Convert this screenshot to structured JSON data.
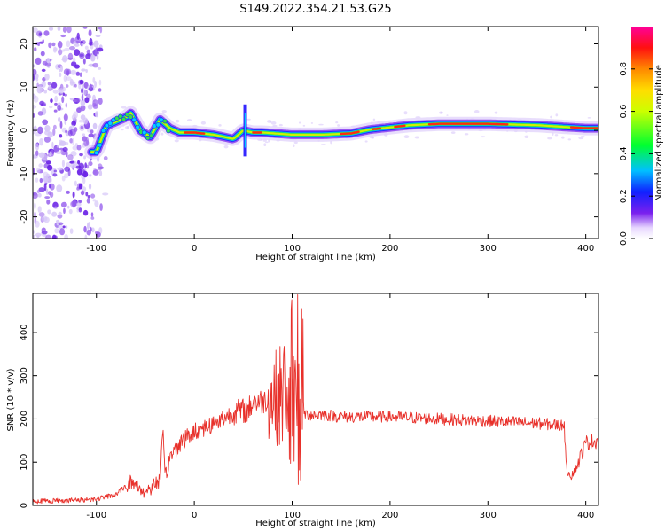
{
  "figure": {
    "title": "S149.2022.354.21.53.G25"
  },
  "colors": {
    "snr_line": "#e8302a",
    "axes": "#000000"
  },
  "chart_data": [
    {
      "type": "heatmap",
      "xlabel": "Height of straight line (km)",
      "ylabel": "Frequency (Hz)",
      "xlim": [
        -165,
        413
      ],
      "ylim": [
        -25,
        24
      ],
      "xticks": [
        "-100",
        "0",
        "100",
        "200",
        "300",
        "400"
      ],
      "xtick_values": [
        -100,
        0,
        100,
        200,
        300,
        400
      ],
      "yticks": [
        "20",
        "10",
        "0",
        "-10",
        "-20"
      ],
      "ytick_values": [
        20,
        10,
        0,
        -10,
        -20
      ],
      "colorbar": {
        "label": "Normalized spectral amplitude",
        "ticks": [
          "0.0",
          "0.2",
          "0.4",
          "0.6",
          "0.8"
        ],
        "tick_values": [
          0.0,
          0.2,
          0.4,
          0.6,
          0.8
        ],
        "range": [
          0,
          1
        ]
      },
      "ridge": {
        "x": [
          -100,
          -90,
          -80,
          -70,
          -65,
          -55,
          -45,
          -35,
          -25,
          -15,
          0,
          20,
          40,
          50,
          60,
          70,
          100,
          130,
          160,
          180,
          200,
          220,
          250,
          300,
          350,
          400,
          413
        ],
        "y": [
          -5,
          1,
          2,
          3,
          4,
          0,
          -1.5,
          2.5,
          0.5,
          -0.5,
          -0.5,
          -1,
          -2,
          0,
          -0.5,
          -0.5,
          -1,
          -1,
          -0.7,
          0.2,
          0.7,
          1.2,
          1.5,
          1.5,
          1.2,
          0.5,
          0.5
        ]
      }
    },
    {
      "type": "line",
      "xlabel": "Height of straight line (km)",
      "ylabel": "SNR (10 * v/v)",
      "xlim": [
        -165,
        413
      ],
      "ylim": [
        0,
        490
      ],
      "xticks": [
        "-100",
        "0",
        "100",
        "200",
        "300",
        "400"
      ],
      "xtick_values": [
        -100,
        0,
        100,
        200,
        300,
        400
      ],
      "yticks": [
        "0",
        "100",
        "200",
        "300",
        "400"
      ],
      "ytick_values": [
        0,
        100,
        200,
        300,
        400
      ],
      "series": [
        {
          "x": [
            -165,
            -120,
            -100,
            -80,
            -65,
            -50,
            -35,
            -32,
            -30,
            -25,
            -15,
            0,
            20,
            40,
            55,
            60,
            70,
            80,
            90,
            95,
            100,
            105,
            108,
            110,
            115,
            130,
            150,
            200,
            250,
            300,
            350,
            375,
            378,
            380,
            385,
            390,
            400,
            413
          ],
          "y": [
            10,
            12,
            15,
            25,
            55,
            30,
            60,
            170,
            60,
            110,
            145,
            170,
            190,
            215,
            220,
            240,
            240,
            250,
            255,
            280,
            200,
            300,
            150,
            215,
            210,
            210,
            205,
            205,
            200,
            195,
            190,
            185,
            190,
            85,
            70,
            85,
            145,
            150
          ]
        }
      ]
    }
  ]
}
